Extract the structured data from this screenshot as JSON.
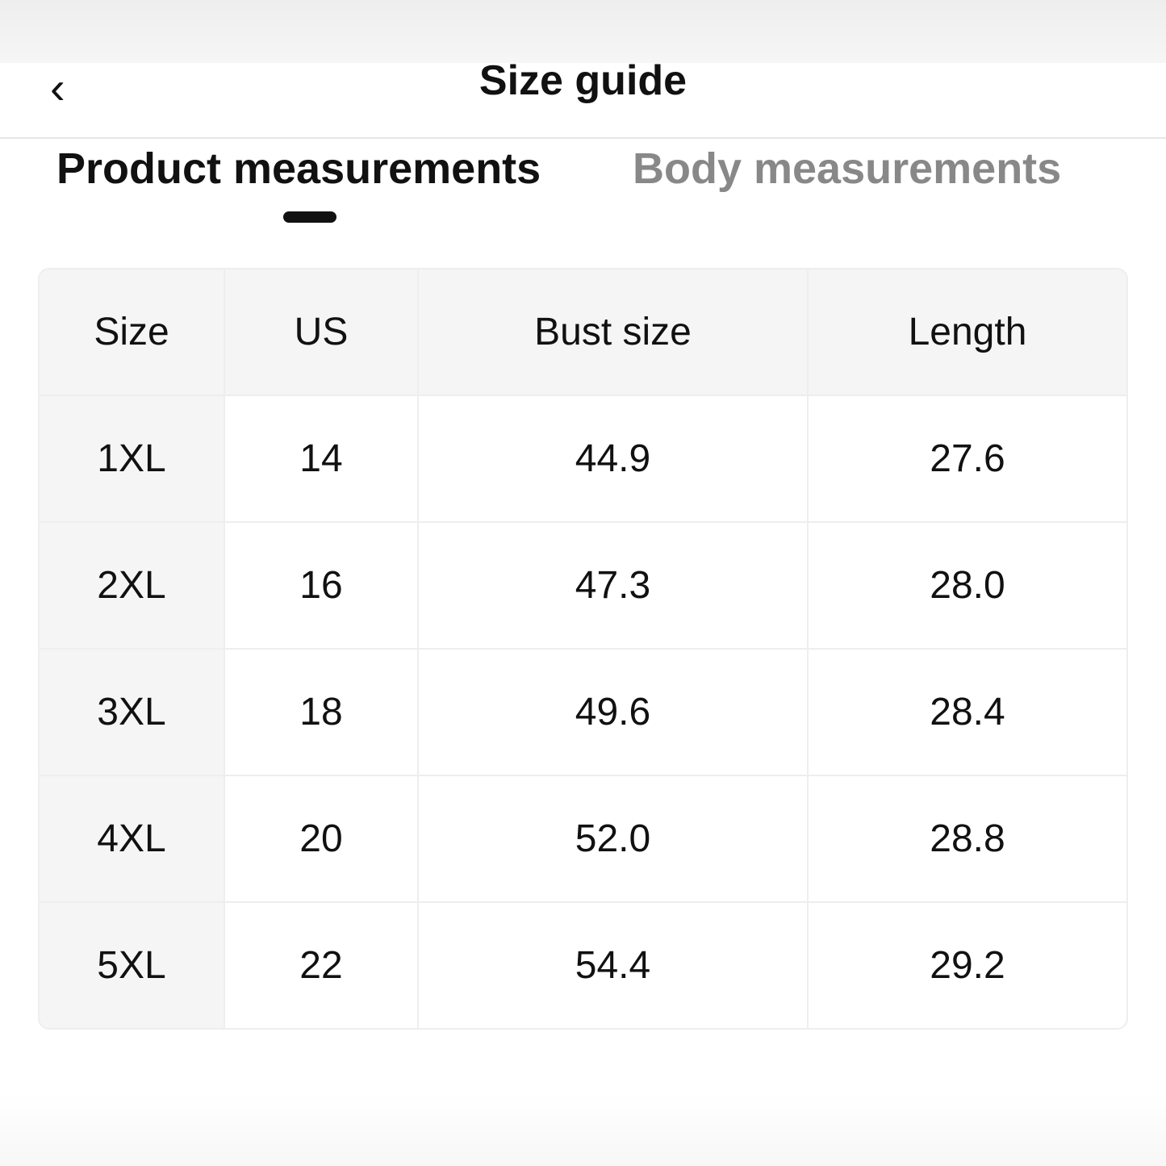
{
  "header": {
    "title": "Size guide",
    "back_icon": "chevron-left-icon"
  },
  "tabs": [
    {
      "label": "Product measurements",
      "active": true
    },
    {
      "label": "Body measurements",
      "active": false
    }
  ],
  "table": {
    "columns": [
      "Size",
      "US",
      "Bust size",
      "Length"
    ],
    "rows": [
      [
        "1XL",
        "14",
        "44.9",
        "27.6"
      ],
      [
        "2XL",
        "16",
        "47.3",
        "28.0"
      ],
      [
        "3XL",
        "18",
        "49.6",
        "28.4"
      ],
      [
        "4XL",
        "20",
        "52.0",
        "28.8"
      ],
      [
        "5XL",
        "22",
        "54.4",
        "29.2"
      ]
    ]
  }
}
